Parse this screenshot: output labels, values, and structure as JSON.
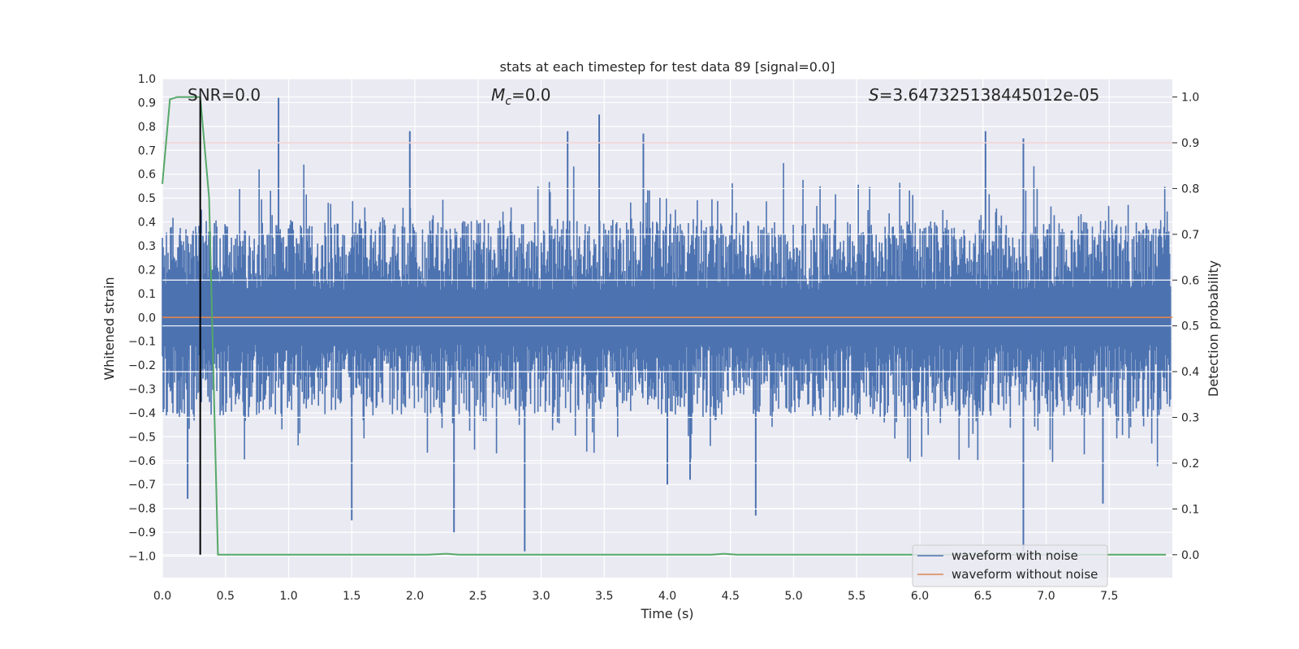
{
  "chart_data": {
    "type": "line",
    "title": "stats at each timestep for test data 89 [signal=0.0]",
    "xlabel": "Time (s)",
    "ylabel": "Whitened strain",
    "ylabel_right": "Detection probability",
    "xlim": [
      0.0,
      8.0
    ],
    "ylim": [
      -1.09,
      1.0
    ],
    "ylim_right": [
      -0.05,
      1.04
    ],
    "grid": true,
    "x_ticks": [
      "0.0",
      "0.5",
      "1.0",
      "1.5",
      "2.0",
      "2.5",
      "3.0",
      "3.5",
      "4.0",
      "4.5",
      "5.0",
      "5.5",
      "6.0",
      "6.5",
      "7.0",
      "7.5"
    ],
    "y_ticks": [
      "1.0",
      "0.9",
      "0.8",
      "0.7",
      "0.6",
      "0.5",
      "0.4",
      "0.3",
      "0.2",
      "0.1",
      "0.0",
      "−0.1",
      "−0.2",
      "−0.3",
      "−0.4",
      "−0.5",
      "−0.6",
      "−0.7",
      "−0.8",
      "−0.9",
      "−1.0"
    ],
    "y_ticks_right": [
      "1.0",
      "0.9",
      "0.8",
      "0.7",
      "0.6",
      "0.5",
      "0.4",
      "0.3",
      "0.2",
      "0.1",
      "0.0"
    ],
    "annotations": {
      "snr": "SNR=0.0",
      "mc_symbol": "M",
      "mc_sub": "c",
      "mc_value": "=0.0",
      "s_symbol": "S",
      "s_value": "=3.647325138445012e-05"
    },
    "threshold_right": 0.9,
    "marker_time": 0.3,
    "series": [
      {
        "name": "waveform with noise",
        "color": "#4c72b0",
        "axis": "left",
        "note": "dense noise, amplitude mostly within ±0.4 with occasional spikes",
        "band_mean": 0.33,
        "spikes": [
          [
            0.92,
            0.92
          ],
          [
            1.96,
            0.78
          ],
          [
            3.21,
            0.78
          ],
          [
            3.46,
            0.85
          ],
          [
            3.81,
            0.77
          ],
          [
            6.52,
            0.78
          ],
          [
            6.82,
            0.75
          ],
          [
            2.87,
            -0.98
          ],
          [
            6.82,
            -0.98
          ],
          [
            2.31,
            -0.9
          ],
          [
            1.5,
            -0.85
          ],
          [
            4.7,
            -0.83
          ],
          [
            0.2,
            -0.76
          ],
          [
            7.45,
            -0.78
          ],
          [
            4.0,
            -0.7
          ],
          [
            4.18,
            -0.68
          ]
        ]
      },
      {
        "name": "waveform without noise",
        "color": "#dd8452",
        "axis": "left",
        "constant": 0.0
      },
      {
        "name": "detection probability",
        "color": "#55a868",
        "axis": "right",
        "x": [
          0.0,
          0.06,
          0.12,
          0.18,
          0.24,
          0.3,
          0.37,
          0.44,
          2.1,
          2.25,
          2.35,
          4.35,
          4.45,
          4.55,
          7.95
        ],
        "y": [
          0.81,
          0.995,
          1.0,
          1.0,
          1.0,
          1.0,
          0.78,
          0.0,
          0.0,
          0.002,
          0.0,
          0.0,
          0.002,
          0.0,
          0.0
        ]
      },
      {
        "name": "threshold",
        "color": "#c44e52",
        "axis": "right",
        "constant": 0.9
      }
    ],
    "legend": {
      "position": "lower-right",
      "entries": [
        "waveform with noise",
        "waveform without noise"
      ]
    }
  }
}
